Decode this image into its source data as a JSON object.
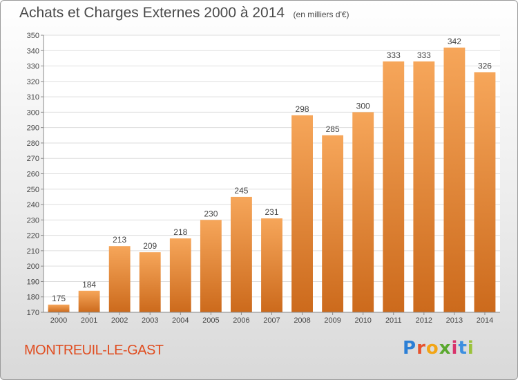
{
  "header": {
    "title": "Achats et Charges Externes 2000 à 2014",
    "subtitle": "(en milliers d'€)"
  },
  "footer": {
    "location": "MONTREUIL-LE-GAST",
    "brand": "Proxiti"
  },
  "colors": {
    "bar_top": "#f6a65a",
    "bar_bottom": "#cc6a1c",
    "plot_bg": "#ffffff",
    "grid": "#dddddd",
    "text": "#444444",
    "location": "#e04d20"
  },
  "chart_data": {
    "type": "bar",
    "title": "Achats et Charges Externes 2000 à 2014",
    "subtitle": "(en milliers d'€)",
    "categories": [
      "2000",
      "2001",
      "2002",
      "2003",
      "2004",
      "2005",
      "2006",
      "2007",
      "2008",
      "2009",
      "2010",
      "2011",
      "2012",
      "2013",
      "2014"
    ],
    "values": [
      175,
      184,
      213,
      209,
      218,
      230,
      245,
      231,
      298,
      285,
      300,
      333,
      333,
      342,
      326
    ],
    "ylim": [
      170,
      350
    ],
    "yticks": [
      170,
      180,
      190,
      200,
      210,
      220,
      230,
      240,
      250,
      260,
      270,
      280,
      290,
      300,
      310,
      320,
      330,
      340,
      350
    ],
    "grid": true,
    "data_labels": true
  }
}
